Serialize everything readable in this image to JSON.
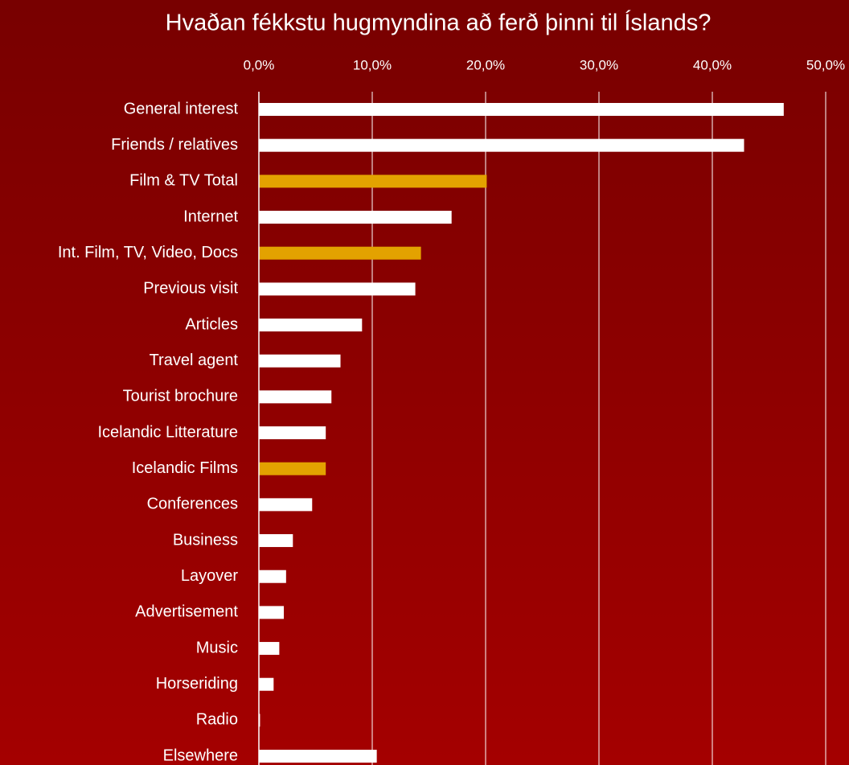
{
  "chart_data": {
    "type": "bar",
    "orientation": "horizontal",
    "title": "Hvaðan fékkstu hugmyndina að ferð þinni til Íslands?",
    "categories": [
      "General interest",
      "Friends / relatives",
      "Film & TV Total",
      "Internet",
      "Int. Film, TV, Video, Docs",
      "Previous visit",
      "Articles",
      "Travel agent",
      "Tourist brochure",
      "Icelandic Litterature",
      "Icelandic Films",
      "Conferences",
      "Business",
      "Layover",
      "Advertisement",
      "Music",
      "Horseriding",
      "Radio",
      "Elsewhere"
    ],
    "values": [
      46.3,
      42.8,
      20.1,
      17.0,
      14.3,
      13.8,
      9.1,
      7.2,
      6.4,
      5.9,
      5.9,
      4.7,
      3.0,
      2.4,
      2.2,
      1.8,
      1.3,
      0.1,
      10.4
    ],
    "colors": [
      "#ffffff",
      "#ffffff",
      "#e3a200",
      "#ffffff",
      "#e3a200",
      "#ffffff",
      "#ffffff",
      "#ffffff",
      "#ffffff",
      "#ffffff",
      "#e3a200",
      "#ffffff",
      "#ffffff",
      "#ffffff",
      "#ffffff",
      "#ffffff",
      "#ffffff",
      "#ffffff",
      "#ffffff"
    ],
    "xlim": [
      0,
      50
    ],
    "xticks": [
      {
        "value": 0,
        "label": "0,0%"
      },
      {
        "value": 10,
        "label": "10,0%"
      },
      {
        "value": 20,
        "label": "20,0%"
      },
      {
        "value": 30,
        "label": "30,0%"
      },
      {
        "value": 40,
        "label": "40,0%"
      },
      {
        "value": 50,
        "label": "50,0%"
      }
    ],
    "grid": true
  }
}
